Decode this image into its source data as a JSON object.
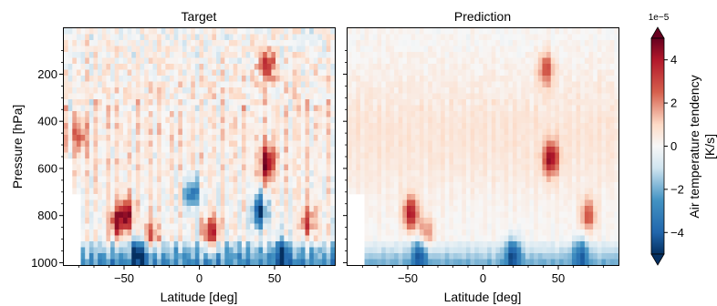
{
  "chart_data": [
    {
      "type": "heatmap",
      "title": "Target",
      "xlabel": "Latitude [deg]",
      "ylabel": "Pressure [hPa]",
      "xlim": [
        -90,
        90
      ],
      "ylim": [
        1010,
        5
      ],
      "y_inverted": true,
      "xticks": [
        -50,
        0,
        50
      ],
      "yticks": [
        200,
        400,
        600,
        800,
        1000
      ],
      "features": [
        {
          "lat": -48,
          "p": 795,
          "value": 4.5
        },
        {
          "lat": -55,
          "p": 830,
          "value": 4.0
        },
        {
          "lat": -32,
          "p": 880,
          "value": 3.0
        },
        {
          "lat": 8,
          "p": 870,
          "value": 4.0
        },
        {
          "lat": 45,
          "p": 580,
          "value": 5.0
        },
        {
          "lat": 45,
          "p": 160,
          "value": 4.0
        },
        {
          "lat": 72,
          "p": 820,
          "value": 3.0
        },
        {
          "lat": -80,
          "p": 450,
          "value": 2.5
        },
        {
          "lat": 40,
          "p": 780,
          "value": -5.0
        },
        {
          "lat": -5,
          "p": 700,
          "value": -4.0
        },
        {
          "lat": -40,
          "p": 960,
          "value": -4.0
        },
        {
          "lat": 55,
          "p": 960,
          "value": -3.5
        }
      ]
    },
    {
      "type": "heatmap",
      "title": "Prediction",
      "xlabel": "Latitude [deg]",
      "ylabel": "",
      "xlim": [
        -90,
        90
      ],
      "ylim": [
        1010,
        5
      ],
      "y_inverted": true,
      "xticks": [
        -50,
        0,
        50
      ],
      "features": [
        {
          "lat": -48,
          "p": 790,
          "value": 4.5
        },
        {
          "lat": -38,
          "p": 880,
          "value": 2.5
        },
        {
          "lat": 45,
          "p": 560,
          "value": 4.5
        },
        {
          "lat": 42,
          "p": 180,
          "value": 3.0
        },
        {
          "lat": 70,
          "p": 800,
          "value": 3.0
        },
        {
          "lat": -42,
          "p": 960,
          "value": -3.5
        },
        {
          "lat": 20,
          "p": 960,
          "value": -3.5
        },
        {
          "lat": 65,
          "p": 960,
          "value": -3.0
        }
      ]
    }
  ],
  "colorbar": {
    "label_line1": "Air temperature tendency",
    "label_line2": "[K/s]",
    "exponent": "1e−5",
    "ticks": [
      {
        "v": 4,
        "label": "4"
      },
      {
        "v": 2,
        "label": "2"
      },
      {
        "v": 0,
        "label": "0"
      },
      {
        "v": -2,
        "label": "−2"
      },
      {
        "v": -4,
        "label": "−4"
      }
    ],
    "vmin": -5.5,
    "vmax": 5.5,
    "cmap": "RdBu_r",
    "extend": "both"
  },
  "colors": {
    "dark_red": "#67001f",
    "red": "#d6604d",
    "white": "#f7f7f7",
    "blue": "#4393c3",
    "dark_blue": "#053061"
  }
}
